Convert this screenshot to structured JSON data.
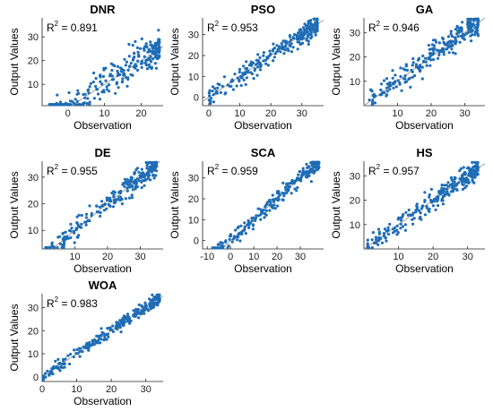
{
  "chart_data": [
    {
      "type": "scatter",
      "title": "DNR",
      "xlabel": "Observation",
      "ylabel": "Output Values",
      "r2_prefix": "R",
      "r2_exp": "2",
      "r2_value": " = 0.891",
      "xlim": [
        -7,
        26
      ],
      "ylim": [
        1,
        38
      ],
      "xticks": [
        0,
        10,
        20
      ],
      "yticks": [
        10,
        20,
        30
      ],
      "x_range": [
        -5,
        25
      ],
      "noise": 4.5,
      "color": "#1f6db5",
      "n_points": 260
    },
    {
      "type": "scatter",
      "title": "PSO",
      "xlabel": "Observation",
      "ylabel": "Output Values",
      "r2_prefix": "R",
      "r2_exp": "2",
      "r2_value": " = 0.953",
      "xlim": [
        -2,
        37
      ],
      "ylim": [
        -4,
        38
      ],
      "xticks": [
        0,
        10,
        20,
        30
      ],
      "yticks": [
        0,
        10,
        20,
        30
      ],
      "x_range": [
        0,
        35
      ],
      "noise": 2.8,
      "color": "#1f6db5",
      "n_points": 260
    },
    {
      "type": "scatter",
      "title": "GA",
      "xlabel": "Observation",
      "ylabel": "Output Values",
      "r2_prefix": "R",
      "r2_exp": "2",
      "r2_value": " = 0.946",
      "xlim": [
        0,
        36
      ],
      "ylim": [
        0,
        36
      ],
      "xticks": [
        10,
        20,
        30
      ],
      "yticks": [
        10,
        20,
        30
      ],
      "x_range": [
        1,
        34
      ],
      "noise": 3.0,
      "color": "#1f6db5",
      "n_points": 260
    },
    {
      "type": "scatter",
      "title": "DE",
      "xlabel": "Observation",
      "ylabel": "Output Values",
      "r2_prefix": "R",
      "r2_exp": "2",
      "r2_value": " = 0.955",
      "xlim": [
        0,
        37
      ],
      "ylim": [
        3,
        36
      ],
      "xticks": [
        10,
        20,
        30
      ],
      "yticks": [
        10,
        20,
        30
      ],
      "x_range": [
        1,
        35
      ],
      "noise": 2.6,
      "color": "#1f6db5",
      "n_points": 260
    },
    {
      "type": "scatter",
      "title": "SCA",
      "xlabel": "Observation",
      "ylabel": "Output Values",
      "r2_prefix": "R",
      "r2_exp": "2",
      "r2_value": " = 0.959",
      "xlim": [
        -12,
        40
      ],
      "ylim": [
        -4,
        38
      ],
      "xticks": [
        -10,
        0,
        10,
        20,
        30
      ],
      "yticks": [
        0,
        10,
        20,
        30
      ],
      "x_range": [
        -8,
        38
      ],
      "noise": 2.4,
      "color": "#1f6db5",
      "n_points": 260
    },
    {
      "type": "scatter",
      "title": "HS",
      "xlabel": "Observation",
      "ylabel": "Output Values",
      "r2_prefix": "R",
      "r2_exp": "2",
      "r2_value": " = 0.957",
      "xlim": [
        0,
        35
      ],
      "ylim": [
        0,
        36
      ],
      "xticks": [
        10,
        20,
        30
      ],
      "yticks": [
        10,
        20,
        30
      ],
      "x_range": [
        1,
        33
      ],
      "noise": 2.5,
      "color": "#1f6db5",
      "n_points": 260
    },
    {
      "type": "scatter",
      "title": "WOA",
      "xlabel": "Observation",
      "ylabel": "Output Values",
      "r2_prefix": "R",
      "r2_exp": "2",
      "r2_value": " = 0.983",
      "xlim": [
        0,
        35
      ],
      "ylim": [
        -2,
        36
      ],
      "xticks": [
        0,
        10,
        20,
        30
      ],
      "yticks": [
        0,
        10,
        20,
        30
      ],
      "x_range": [
        0,
        34
      ],
      "noise": 1.5,
      "color": "#1f6db5",
      "n_points": 260
    }
  ]
}
